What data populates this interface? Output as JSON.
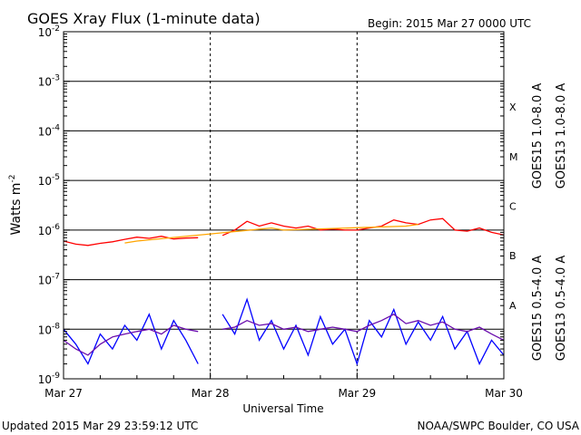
{
  "chart_data": {
    "type": "line",
    "title": "GOES Xray Flux (1-minute data)",
    "begin_label": "Begin:  2015 Mar 27 0000 UTC",
    "ylabel_main": "Watts m",
    "ylabel_exp": "-2",
    "xlabel": "Universal Time",
    "updated": "Updated 2015 Mar 29 23:59:12 UTC",
    "credit": "NOAA/SWPC Boulder, CO USA",
    "y_scale": "log",
    "ylim": [
      1e-09,
      0.01
    ],
    "y_ticks": [
      {
        "exp": "-9",
        "value": 1e-09
      },
      {
        "exp": "-8",
        "value": 1e-08
      },
      {
        "exp": "-7",
        "value": 1e-07
      },
      {
        "exp": "-6",
        "value": 1e-06
      },
      {
        "exp": "-5",
        "value": 1e-05
      },
      {
        "exp": "-4",
        "value": 0.0001
      },
      {
        "exp": "-3",
        "value": 0.001
      },
      {
        "exp": "-2",
        "value": 0.01
      }
    ],
    "x_range_hours": [
      0,
      72
    ],
    "x_ticks": [
      {
        "label": "Mar 27",
        "hour": 0
      },
      {
        "label": "Mar 28",
        "hour": 24
      },
      {
        "label": "Mar 29",
        "hour": 48
      },
      {
        "label": "Mar 30",
        "hour": 72
      }
    ],
    "flare_classes": [
      {
        "label": "X",
        "value": 0.0001
      },
      {
        "label": "M",
        "value": 1e-05
      },
      {
        "label": "C",
        "value": 1e-06
      },
      {
        "label": "B",
        "value": 1e-07
      },
      {
        "label": "A",
        "value": 1e-08
      }
    ],
    "grid": true,
    "legend_placement": "right",
    "series": [
      {
        "name": "GOES15 1.0-8.0 A",
        "color": "#ff0000",
        "points": [
          [
            0,
            6e-07
          ],
          [
            2,
            5.2e-07
          ],
          [
            4,
            4.9e-07
          ],
          [
            6,
            5.4e-07
          ],
          [
            8,
            5.8e-07
          ],
          [
            10,
            6.5e-07
          ],
          [
            12,
            7.2e-07
          ],
          [
            14,
            6.8e-07
          ],
          [
            16,
            7.5e-07
          ],
          [
            18,
            6.6e-07
          ],
          [
            20,
            6.9e-07
          ],
          [
            22,
            7e-07
          ],
          [
            24,
            null
          ],
          [
            26,
            7.8e-07
          ],
          [
            28,
            1e-06
          ],
          [
            30,
            1.5e-06
          ],
          [
            32,
            1.2e-06
          ],
          [
            34,
            1.4e-06
          ],
          [
            36,
            1.2e-06
          ],
          [
            38,
            1.1e-06
          ],
          [
            40,
            1.2e-06
          ],
          [
            42,
            1e-06
          ],
          [
            44,
            1.05e-06
          ],
          [
            46,
            1e-06
          ],
          [
            48,
            1e-06
          ],
          [
            50,
            1.1e-06
          ],
          [
            52,
            1.2e-06
          ],
          [
            54,
            1.6e-06
          ],
          [
            56,
            1.4e-06
          ],
          [
            58,
            1.3e-06
          ],
          [
            60,
            1.6e-06
          ],
          [
            62,
            1.7e-06
          ],
          [
            64,
            1e-06
          ],
          [
            66,
            9.5e-07
          ],
          [
            68,
            1.1e-06
          ],
          [
            70,
            9e-07
          ],
          [
            72,
            8e-07
          ]
        ]
      },
      {
        "name": "GOES13 1.0-8.0 A",
        "color": "#ffa500",
        "points": [
          [
            10,
            5.5e-07
          ],
          [
            12,
            6e-07
          ],
          [
            34,
            1.1e-06
          ],
          [
            36,
            1e-06
          ],
          [
            56,
            1.2e-06
          ],
          [
            58,
            1.3e-06
          ]
        ]
      },
      {
        "name": "GOES15 0.5-4.0 A",
        "color": "#0000ff",
        "points": [
          [
            0,
            1e-08
          ],
          [
            2,
            5e-09
          ],
          [
            4,
            2e-09
          ],
          [
            6,
            8e-09
          ],
          [
            8,
            4e-09
          ],
          [
            10,
            1.2e-08
          ],
          [
            12,
            6e-09
          ],
          [
            14,
            2e-08
          ],
          [
            16,
            4e-09
          ],
          [
            18,
            1.5e-08
          ],
          [
            20,
            6e-09
          ],
          [
            22,
            2e-09
          ],
          [
            24,
            null
          ],
          [
            26,
            2e-08
          ],
          [
            28,
            8e-09
          ],
          [
            30,
            4e-08
          ],
          [
            32,
            6e-09
          ],
          [
            34,
            1.5e-08
          ],
          [
            36,
            4e-09
          ],
          [
            38,
            1.2e-08
          ],
          [
            40,
            3e-09
          ],
          [
            42,
            1.8e-08
          ],
          [
            44,
            5e-09
          ],
          [
            46,
            1e-08
          ],
          [
            48,
            2e-09
          ],
          [
            50,
            1.5e-08
          ],
          [
            52,
            7e-09
          ],
          [
            54,
            2.5e-08
          ],
          [
            56,
            5e-09
          ],
          [
            58,
            1.4e-08
          ],
          [
            60,
            6e-09
          ],
          [
            62,
            1.8e-08
          ],
          [
            64,
            4e-09
          ],
          [
            66,
            9e-09
          ],
          [
            68,
            2e-09
          ],
          [
            70,
            6e-09
          ],
          [
            72,
            3e-09
          ]
        ]
      },
      {
        "name": "GOES13 0.5-4.0 A",
        "color": "#6a0dad",
        "points": [
          [
            0,
            6e-09
          ],
          [
            2,
            4e-09
          ],
          [
            4,
            3e-09
          ],
          [
            6,
            5e-09
          ],
          [
            8,
            7e-09
          ],
          [
            10,
            8e-09
          ],
          [
            12,
            9e-09
          ],
          [
            14,
            1e-08
          ],
          [
            16,
            8e-09
          ],
          [
            18,
            1.2e-08
          ],
          [
            20,
            1e-08
          ],
          [
            22,
            9e-09
          ],
          [
            24,
            null
          ],
          [
            26,
            1e-08
          ],
          [
            28,
            1.1e-08
          ],
          [
            30,
            1.5e-08
          ],
          [
            32,
            1.2e-08
          ],
          [
            34,
            1.3e-08
          ],
          [
            36,
            1e-08
          ],
          [
            38,
            1.1e-08
          ],
          [
            40,
            9e-09
          ],
          [
            42,
            1e-08
          ],
          [
            44,
            1.1e-08
          ],
          [
            46,
            1e-08
          ],
          [
            48,
            9e-09
          ],
          [
            50,
            1.2e-08
          ],
          [
            52,
            1.5e-08
          ],
          [
            54,
            2e-08
          ],
          [
            56,
            1.3e-08
          ],
          [
            58,
            1.5e-08
          ],
          [
            60,
            1.2e-08
          ],
          [
            62,
            1.4e-08
          ],
          [
            64,
            1e-08
          ],
          [
            66,
            9e-09
          ],
          [
            68,
            1.1e-08
          ],
          [
            70,
            8e-09
          ],
          [
            72,
            6e-09
          ]
        ]
      }
    ]
  }
}
